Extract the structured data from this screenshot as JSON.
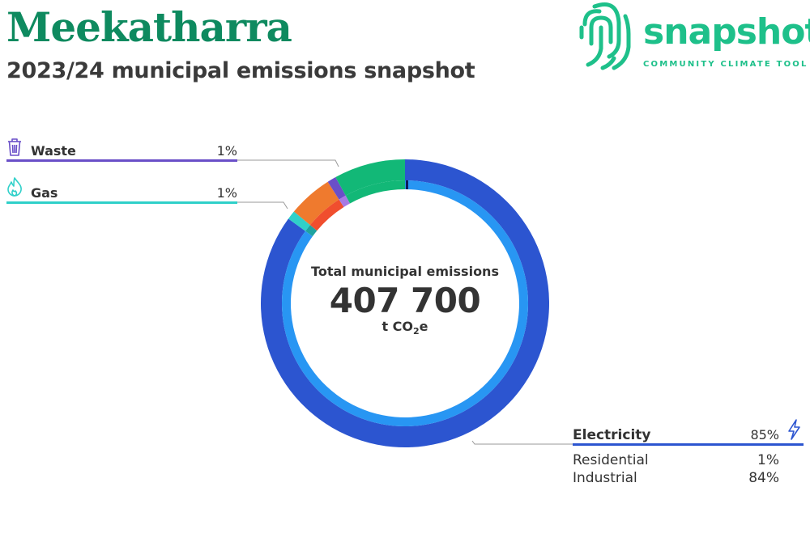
{
  "header": {
    "title": "Meekatharra",
    "subtitle": "2023/24 municipal emissions snapshot"
  },
  "logo": {
    "word": "snapshot",
    "tagline": "COMMUNITY CLIMATE TOOL",
    "color": "#1ec08a"
  },
  "center": {
    "label": "Total municipal emissions",
    "value": "407 700",
    "unit_prefix": "t CO",
    "unit_sub": "2",
    "unit_suffix": "e"
  },
  "legend": {
    "waste": {
      "label": "Waste",
      "value": "1%",
      "color": "#6a4fc8",
      "icon": "trash-icon"
    },
    "gas": {
      "label": "Gas",
      "value": "1%",
      "color": "#2fd0c9",
      "icon": "flame-icon"
    },
    "electricity": {
      "label": "Electricity",
      "value": "85%",
      "color": "#2c55d0",
      "icon": "lightning-icon",
      "sub": [
        {
          "label": "Residential",
          "value": "1%"
        },
        {
          "label": "Industrial",
          "value": "84%"
        }
      ]
    }
  },
  "chart_data": {
    "type": "pie",
    "total": 407700,
    "unit": "t CO2e",
    "segments": [
      {
        "name": "Electricity",
        "value": 85,
        "color": "#2c55d0",
        "inner_color": "#2896f3",
        "sub": [
          {
            "name": "Residential",
            "value": 1
          },
          {
            "name": "Industrial",
            "value": 84
          }
        ]
      },
      {
        "name": "Gas",
        "value": 1,
        "color": "#2fd0c9",
        "inner_color": "#1fa3a0"
      },
      {
        "name": "",
        "value": 5,
        "color": "#ef7a2e",
        "inner_color": "#f04e2e"
      },
      {
        "name": "Waste",
        "value": 1,
        "color": "#6a4fc8",
        "inner_color": "#a779e4"
      },
      {
        "name": "",
        "value": 8,
        "color": "#12b877",
        "inner_color": "#12b877"
      }
    ]
  }
}
